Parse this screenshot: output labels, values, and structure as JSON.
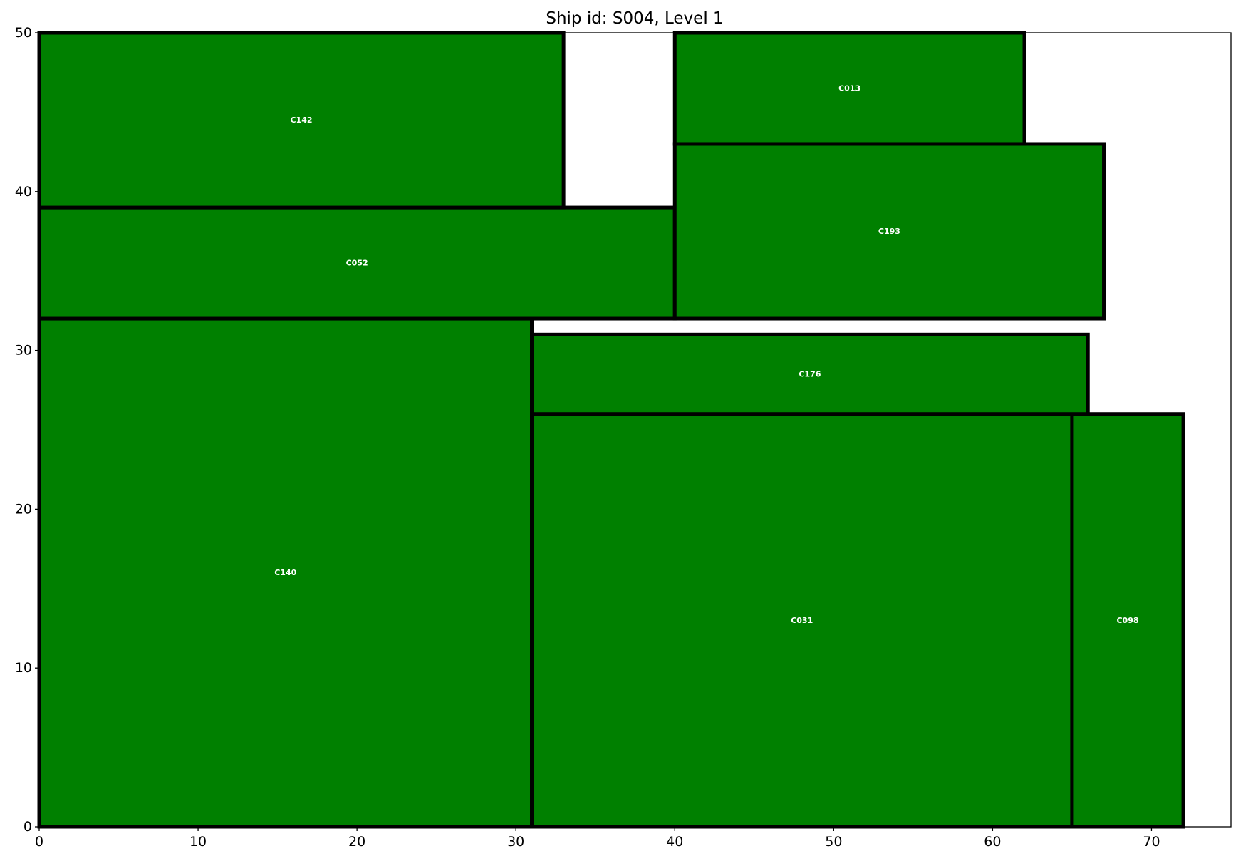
{
  "chart_data": {
    "type": "rectangle-layout",
    "title": "Ship id: S004, Level 1",
    "xlim": [
      0,
      75
    ],
    "ylim": [
      0,
      50
    ],
    "xticks": [
      0,
      10,
      20,
      30,
      40,
      50,
      60,
      70
    ],
    "yticks": [
      0,
      10,
      20,
      30,
      40,
      50
    ],
    "fill_color": "#008000",
    "edge_color": "#000000",
    "label_color": "#ffffff",
    "rects": [
      {
        "label": "C140",
        "x": 0,
        "y": 0,
        "w": 31,
        "h": 32
      },
      {
        "label": "C031",
        "x": 31,
        "y": 0,
        "w": 34,
        "h": 26
      },
      {
        "label": "C098",
        "x": 65,
        "y": 0,
        "w": 7,
        "h": 26
      },
      {
        "label": "C176",
        "x": 31,
        "y": 26,
        "w": 35,
        "h": 5
      },
      {
        "label": "C052",
        "x": 0,
        "y": 32,
        "w": 40,
        "h": 7
      },
      {
        "label": "C142",
        "x": 0,
        "y": 39,
        "w": 33,
        "h": 11
      },
      {
        "label": "C193",
        "x": 40,
        "y": 32,
        "w": 27,
        "h": 11
      },
      {
        "label": "C013",
        "x": 40,
        "y": 43,
        "w": 22,
        "h": 7
      }
    ]
  }
}
